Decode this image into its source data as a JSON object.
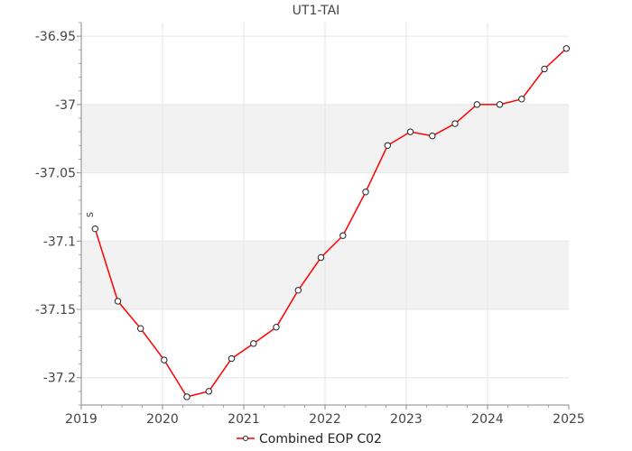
{
  "chart_data": {
    "type": "line",
    "title": "UT1-TAI",
    "ylabel": "s",
    "xlabel": "",
    "xlim": [
      2019,
      2025
    ],
    "ylim": [
      -37.22,
      -36.94
    ],
    "x_ticks": [
      "2019",
      "2020",
      "2021",
      "2022",
      "2023",
      "2024",
      "2025"
    ],
    "y_ticks": [
      "-36.95",
      "-37",
      "-37.05",
      "-37.1",
      "-37.15",
      "-37.2"
    ],
    "bands": [
      [
        -37.05,
        -37.0
      ],
      [
        -37.15,
        -37.1
      ]
    ],
    "grid": true,
    "legend_position": "bottom-center",
    "series": [
      {
        "name": "Combined EOP C02",
        "color": "#ff0000",
        "marker": "open-circle",
        "x": [
          2019.17,
          2019.45,
          2019.73,
          2020.02,
          2020.3,
          2020.57,
          2020.85,
          2021.12,
          2021.4,
          2021.67,
          2021.95,
          2022.22,
          2022.5,
          2022.77,
          2023.05,
          2023.32,
          2023.6,
          2023.87,
          2024.15,
          2024.42,
          2024.7,
          2024.97
        ],
        "y": [
          -37.091,
          -37.144,
          -37.164,
          -37.187,
          -37.214,
          -37.21,
          -37.186,
          -37.175,
          -37.163,
          -37.136,
          -37.112,
          -37.096,
          -37.064,
          -37.03,
          -37.02,
          -37.023,
          -37.014,
          -37.0,
          -37.0,
          -36.996,
          -36.974,
          -36.959
        ]
      }
    ]
  }
}
